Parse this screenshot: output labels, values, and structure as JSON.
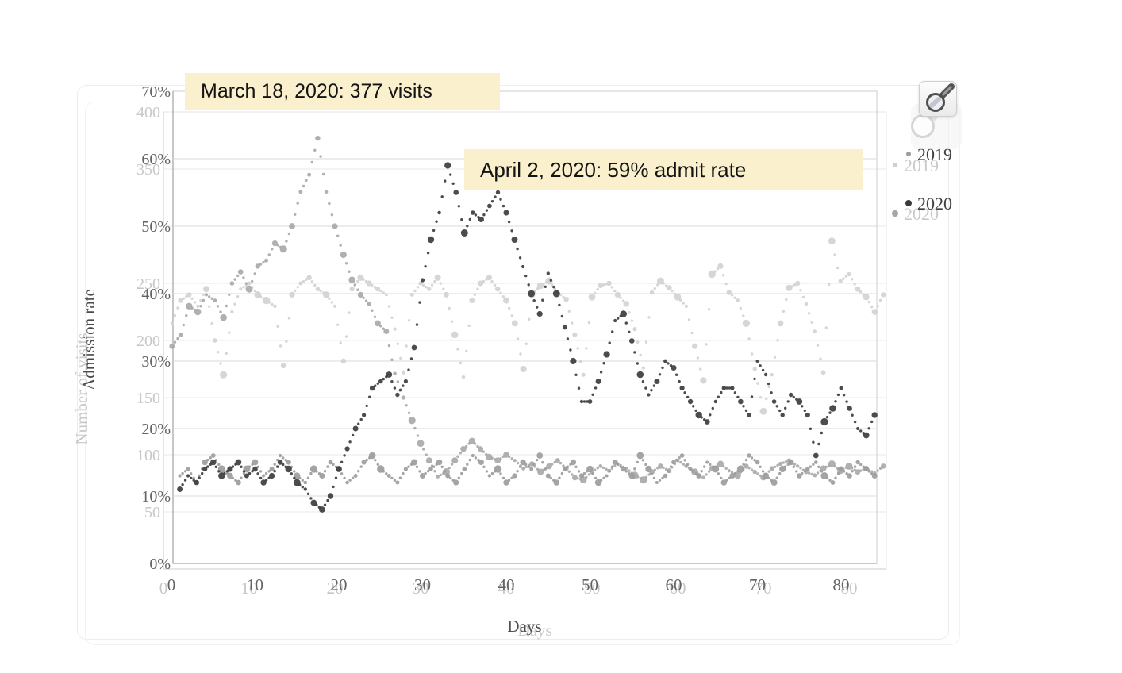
{
  "annotations": [
    {
      "text": "March 18, 2020: 377 visits",
      "bg": "#faf0cd"
    },
    {
      "text": "April 2, 2020: 59% admit rate",
      "bg": "#faf0cd"
    }
  ],
  "controls": {
    "zoom_button_icon": "magnifier"
  },
  "chart_data": [
    {
      "id": "visits",
      "type": "scatter",
      "title": "",
      "xlabel": "Days",
      "ylabel": "Number of visits",
      "xlim": [
        0,
        84
      ],
      "ylim": [
        0,
        400
      ],
      "grid": true,
      "legend_position": "right",
      "x_ticks": [
        0,
        10,
        20,
        30,
        40,
        50,
        60,
        70,
        80
      ],
      "y_ticks": [
        50,
        100,
        150,
        200,
        250,
        350,
        400
      ],
      "y_tick_labels": [
        "50",
        "100",
        "150",
        "200",
        "250",
        "350",
        "400"
      ],
      "y_grid_values": [
        50,
        100,
        150,
        200,
        250,
        300,
        350
      ],
      "legend": [
        {
          "label": "2019",
          "marker_color": "#d0d0d0"
        },
        {
          "label": "2020",
          "marker_color": "#a6a6a6"
        }
      ],
      "series": [
        {
          "name": "2019",
          "color": "#d2d2d2",
          "x_start": 1,
          "x_step": 1,
          "values": [
            215,
            235,
            240,
            230,
            245,
            200,
            170,
            225,
            245,
            250,
            240,
            235,
            230,
            178,
            240,
            250,
            255,
            245,
            240,
            230,
            182,
            245,
            255,
            250,
            245,
            240,
            210,
            172,
            240,
            250,
            245,
            255,
            240,
            205,
            168,
            235,
            250,
            255,
            245,
            235,
            215,
            175,
            240,
            248,
            252,
            242,
            236,
            205,
            170,
            238,
            248,
            250,
            240,
            232,
            210,
            176,
            242,
            252,
            246,
            238,
            230,
            195,
            165,
            258,
            265,
            242,
            235,
            215,
            175,
            138,
            170,
            215,
            246,
            250,
            232,
            208,
            172,
            287,
            252,
            258,
            245,
            238,
            225,
            240
          ]
        },
        {
          "name": "2020",
          "color": "#a9a9a9",
          "x_start": 1,
          "x_step": 1,
          "values": [
            195,
            205,
            230,
            225,
            240,
            235,
            220,
            250,
            260,
            245,
            265,
            270,
            285,
            280,
            300,
            330,
            345,
            377,
            330,
            300,
            275,
            253,
            240,
            232,
            215,
            208,
            171,
            150,
            130,
            110,
            95,
            81,
            85,
            95,
            105,
            112,
            105,
            98,
            95,
            100,
            95,
            88,
            92,
            85,
            90,
            95,
            88,
            80,
            78,
            85,
            90,
            86,
            92,
            88,
            82,
            78,
            85,
            90,
            86,
            95,
            90,
            85,
            80,
            88,
            92,
            86,
            82,
            90,
            85,
            80,
            88,
            92,
            95,
            90,
            85,
            82,
            88,
            92,
            86,
            90,
            85,
            88,
            84,
            90
          ]
        }
      ]
    },
    {
      "id": "rate",
      "type": "scatter",
      "title": "",
      "xlabel": "Days",
      "ylabel": "Admission rate",
      "xlim": [
        0,
        84
      ],
      "ylim": [
        0,
        70
      ],
      "grid": true,
      "legend_position": "right",
      "x_ticks": [
        0,
        10,
        20,
        30,
        40,
        50,
        60,
        70,
        80
      ],
      "y_ticks": [
        0,
        10,
        20,
        30,
        40,
        50,
        60,
        70
      ],
      "y_tick_labels": [
        "0%",
        "10%",
        "20%",
        "30%",
        "40%",
        "50%",
        "60%",
        "70%"
      ],
      "y_grid_values": [
        10,
        20,
        30,
        40,
        50,
        60
      ],
      "legend": [
        {
          "label": "2019",
          "marker_color": "#9e9e9e"
        },
        {
          "label": "2020",
          "marker_color": "#3a3a3a"
        }
      ],
      "series": [
        {
          "name": "2019",
          "color": "#9c9c9c",
          "x_start": 1,
          "x_step": 1,
          "values": [
            13,
            14,
            12,
            15,
            16,
            14,
            13,
            12,
            14,
            15,
            13,
            14,
            16,
            15,
            13,
            12,
            14,
            13,
            15,
            14,
            12,
            13,
            15,
            16,
            14,
            13,
            12,
            14,
            15,
            13,
            14,
            15,
            13,
            12,
            14,
            16,
            15,
            13,
            14,
            12,
            13,
            15,
            14,
            16,
            13,
            12,
            14,
            15,
            13,
            14,
            12,
            13,
            15,
            14,
            13,
            16,
            14,
            12,
            13,
            15,
            16,
            14,
            13,
            15,
            14,
            12,
            13,
            14,
            16,
            15,
            13,
            12,
            14,
            15,
            13,
            14,
            15,
            13,
            12,
            14,
            13,
            15,
            14,
            13
          ]
        },
        {
          "name": "2020",
          "color": "#3d3d3d",
          "x_start": 1,
          "x_step": 1,
          "values": [
            11,
            13,
            12,
            14,
            15,
            13,
            14,
            15,
            13,
            14,
            12,
            13,
            15,
            14,
            12,
            11,
            9,
            8,
            10,
            14,
            17,
            20,
            22,
            26,
            27,
            28,
            25,
            27,
            32,
            42,
            48,
            52,
            59,
            55,
            49,
            52,
            51,
            53,
            55,
            52,
            48,
            44,
            40,
            37,
            43,
            40,
            35,
            30,
            24,
            24,
            27,
            31,
            36,
            37,
            33,
            28,
            25,
            27,
            30,
            29,
            26,
            24,
            22,
            21,
            24,
            26,
            26,
            24,
            22,
            30,
            28,
            24,
            22,
            25,
            24,
            22,
            16,
            21,
            23,
            26,
            23,
            20,
            19,
            22
          ]
        }
      ]
    }
  ]
}
